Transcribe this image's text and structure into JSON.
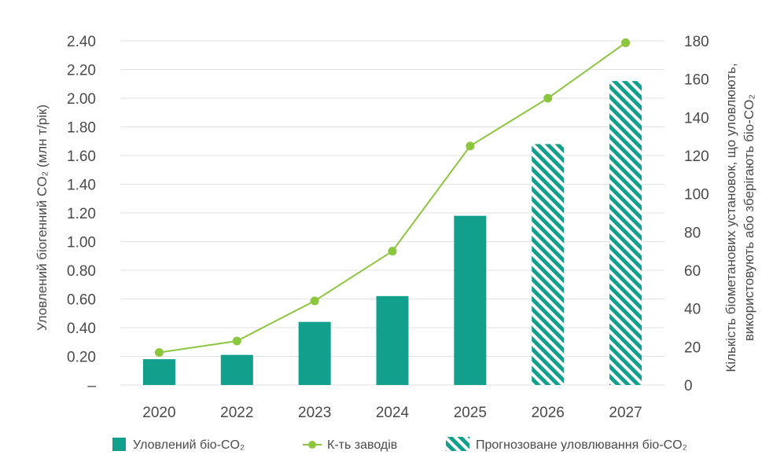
{
  "chart_data": {
    "type": "bar",
    "categories": [
      "2020",
      "2022",
      "2023",
      "2024",
      "2025",
      "2026",
      "2027"
    ],
    "series": [
      {
        "name": "Уловлений біо-CO₂",
        "type": "bar",
        "axis": "left",
        "values": [
          0.18,
          0.21,
          0.44,
          0.62,
          1.18,
          null,
          null
        ]
      },
      {
        "name": "Прогнозоване уловлювання біо-CO₂",
        "type": "bar",
        "pattern": "hatched",
        "axis": "left",
        "values": [
          null,
          null,
          null,
          null,
          null,
          1.68,
          2.12
        ]
      },
      {
        "name": "К-ть заводів",
        "type": "line",
        "axis": "right",
        "values": [
          17,
          23,
          44,
          70,
          125,
          150,
          179
        ]
      }
    ],
    "y_left": {
      "label": "Уловлений біогенний CO₂ (млн т/рік)",
      "ylim": [
        0,
        2.4
      ],
      "ticks": [
        0,
        0.2,
        0.4,
        0.6,
        0.8,
        1.0,
        1.2,
        1.4,
        1.6,
        1.8,
        2.0,
        2.2,
        2.4
      ],
      "tick_labels": [
        "–",
        "0.20",
        "0.40",
        "0.60",
        "0.80",
        "1.00",
        "1.20",
        "1.40",
        "1.60",
        "1.80",
        "2.00",
        "2.20",
        "2.40"
      ]
    },
    "y_right": {
      "label_line1": "Кількість біометанових установок, що уловлюють,",
      "label_line2": "використовують або зберігають біо-CO₂",
      "ylim": [
        0,
        180
      ],
      "ticks": [
        0,
        20,
        40,
        60,
        80,
        100,
        120,
        140,
        160,
        180
      ],
      "tick_labels": [
        "0",
        "20",
        "40",
        "60",
        "80",
        "100",
        "120",
        "140",
        "160",
        "180"
      ]
    },
    "legend": {
      "position": "bottom",
      "items": [
        {
          "label": "Уловлений біо-CO₂",
          "kind": "bar"
        },
        {
          "label": "К-ть заводів",
          "kind": "line"
        },
        {
          "label": "Прогнозоване уловлювання біо-CO₂",
          "kind": "hatched"
        }
      ]
    },
    "grid": true,
    "colors": {
      "bar": "#12a08c",
      "line": "#8cc63f",
      "grid": "#e2e2e2",
      "text": "#4a4a4a"
    }
  }
}
